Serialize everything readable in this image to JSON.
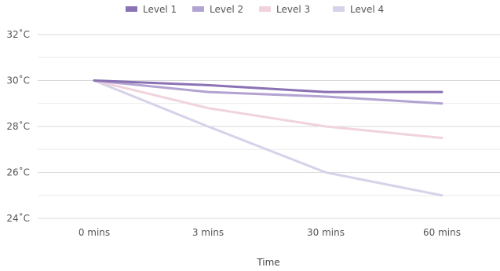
{
  "chart_data": {
    "type": "line",
    "title": "",
    "xlabel": "Time",
    "ylabel": "",
    "categories": [
      "0 mins",
      "3 mins",
      "30 mins",
      "60 mins"
    ],
    "ylim": [
      24,
      32
    ],
    "y_ticks": [
      24,
      26,
      28,
      30,
      32
    ],
    "y_tick_labels": [
      "24˚C",
      "26˚C",
      "28˚C",
      "30˚C",
      "32˚C"
    ],
    "grid": "horizontal",
    "legend_position": "top",
    "series": [
      {
        "name": "Level 1",
        "color": "#8a72b5",
        "values": [
          30,
          29.8,
          29.5,
          29.5
        ]
      },
      {
        "name": "Level 2",
        "color": "#b3a3d2",
        "values": [
          30,
          29.5,
          29.3,
          29.0
        ]
      },
      {
        "name": "Level 3",
        "color": "#f0d3dc",
        "values": [
          30,
          28.8,
          28.0,
          27.5
        ]
      },
      {
        "name": "Level 4",
        "color": "#d6d2ea",
        "values": [
          30,
          28.0,
          26.0,
          25.0
        ]
      }
    ]
  }
}
